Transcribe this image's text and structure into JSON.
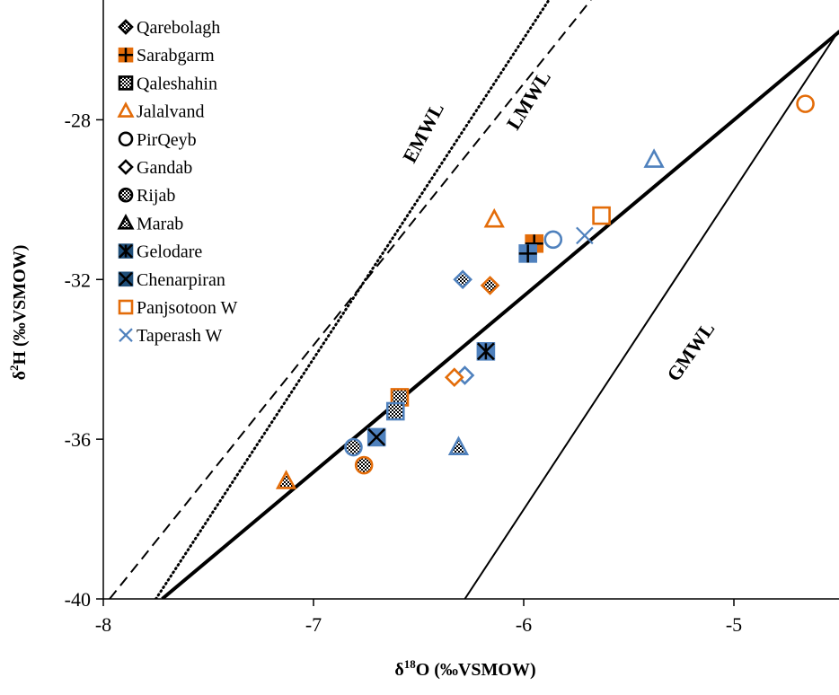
{
  "chart_data": {
    "type": "scatter",
    "xlabel": "δ¹⁸O (‰VSMOW)",
    "ylabel": "δ²H (‰VSMOW)",
    "xlim": [
      -8,
      -4.5
    ],
    "ylim": [
      -40,
      -25
    ],
    "x_ticks": [
      -8,
      -7,
      -6,
      -5
    ],
    "y_ticks": [
      -40,
      -36,
      -32,
      -28
    ],
    "x_tick_labels": [
      "-8",
      "-7",
      "-6",
      "-5"
    ],
    "y_tick_labels": [
      "-40",
      "-36",
      "-32",
      "-28"
    ],
    "grid": false,
    "legend_position": "top-left",
    "colors": {
      "orange": "#E36C09",
      "blue": "#4F81BD",
      "navy": "#1F4E79",
      "black": "#000000"
    },
    "legend": [
      {
        "label": "Qarebolagh",
        "marker": "diamond-plus",
        "color": "#000000"
      },
      {
        "label": "Sarabgarm",
        "marker": "square-cross",
        "color": "#E36C09"
      },
      {
        "label": "Qaleshahin",
        "marker": "square-checker",
        "color": "#000000"
      },
      {
        "label": "Jalalvand",
        "marker": "triangle",
        "color": "#E36C09"
      },
      {
        "label": "PirQeyb",
        "marker": "circle",
        "color": "#000000"
      },
      {
        "label": "Gandab",
        "marker": "diamond",
        "color": "#000000"
      },
      {
        "label": "Rijab",
        "marker": "circle-checker",
        "color": "#000000"
      },
      {
        "label": "Marab",
        "marker": "triangle-checker",
        "color": "#000000"
      },
      {
        "label": "Gelodare",
        "marker": "square-asterisk",
        "color": "#1F4E79"
      },
      {
        "label": "Chenarpiran",
        "marker": "square-x",
        "color": "#1F4E79"
      },
      {
        "label": "Panjsotoon W",
        "marker": "square",
        "color": "#E36C09"
      },
      {
        "label": "Taperash W",
        "marker": "x",
        "color": "#4F81BD"
      }
    ],
    "lines": [
      {
        "name": "EMWL",
        "style": "dotted",
        "x": [
          -7.75,
          -5.88
        ],
        "y": [
          -40,
          -25
        ]
      },
      {
        "name": "LMWL",
        "style": "dashed",
        "x": [
          -7.97,
          -5.68
        ],
        "y": [
          -40,
          -25
        ]
      },
      {
        "name": "GMWL",
        "style": "solid-thin",
        "x": [
          -6.28,
          -4.5
        ],
        "y": [
          -40,
          -25.76
        ]
      },
      {
        "name": "",
        "style": "solid-thick",
        "x": [
          -7.72,
          -4.5
        ],
        "y": [
          -40,
          -25.8
        ]
      }
    ],
    "line_labels": [
      {
        "text": "EMWL",
        "x": -6.45,
        "y": -28.4
      },
      {
        "text": "LMWL",
        "x": -5.95,
        "y": -27.6
      },
      {
        "text": "GMWL",
        "x": -5.18,
        "y": -33.9
      }
    ],
    "points": [
      {
        "x": -4.66,
        "y": -27.6,
        "marker": "circle",
        "color": "#E36C09",
        "label": "PirQeyb"
      },
      {
        "x": -5.38,
        "y": -29.0,
        "marker": "triangle",
        "color": "#4F81BD",
        "label": "Marab"
      },
      {
        "x": -5.63,
        "y": -30.4,
        "marker": "square",
        "color": "#E36C09",
        "label": "Panjsotoon W"
      },
      {
        "x": -5.71,
        "y": -30.9,
        "marker": "x",
        "color": "#4F81BD",
        "label": "Taperash W"
      },
      {
        "x": -5.86,
        "y": -31.0,
        "marker": "circle",
        "color": "#4F81BD",
        "label": "PirQeyb"
      },
      {
        "x": -5.95,
        "y": -31.1,
        "marker": "square-cross",
        "color": "#E36C09",
        "label": "Sarabgarm"
      },
      {
        "x": -5.98,
        "y": -31.35,
        "marker": "square-cross",
        "color": "#4F81BD",
        "label": "Sarabgarm"
      },
      {
        "x": -6.14,
        "y": -30.5,
        "marker": "triangle",
        "color": "#E36C09",
        "label": "Jalalvand"
      },
      {
        "x": -6.29,
        "y": -32.0,
        "marker": "diamond-plus",
        "color": "#4F81BD",
        "label": "Qarebolagh"
      },
      {
        "x": -6.16,
        "y": -32.15,
        "marker": "diamond-plus",
        "color": "#E36C09",
        "label": "Qarebolagh"
      },
      {
        "x": -6.18,
        "y": -33.8,
        "marker": "square-asterisk",
        "color": "#4F81BD",
        "label": "Gelodare"
      },
      {
        "x": -6.28,
        "y": -34.4,
        "marker": "diamond",
        "color": "#4F81BD",
        "label": "Gandab"
      },
      {
        "x": -6.33,
        "y": -34.45,
        "marker": "diamond",
        "color": "#E36C09",
        "label": "Gandab"
      },
      {
        "x": -6.31,
        "y": -36.2,
        "marker": "triangle-checker",
        "color": "#4F81BD",
        "label": "Marab"
      },
      {
        "x": -6.59,
        "y": -34.95,
        "marker": "square-checker",
        "color": "#E36C09",
        "label": "Qaleshahin"
      },
      {
        "x": -6.61,
        "y": -35.3,
        "marker": "square-checker",
        "color": "#4F81BD",
        "label": "Qaleshahin"
      },
      {
        "x": -6.7,
        "y": -35.95,
        "marker": "square-x",
        "color": "#4F81BD",
        "label": "Chenarpiran"
      },
      {
        "x": -6.81,
        "y": -36.2,
        "marker": "circle-checker",
        "color": "#4F81BD",
        "label": "Rijab"
      },
      {
        "x": -6.76,
        "y": -36.65,
        "marker": "circle-checker",
        "color": "#E36C09",
        "label": "Rijab"
      },
      {
        "x": -7.13,
        "y": -37.05,
        "marker": "triangle-checker",
        "color": "#E36C09",
        "label": "Marab"
      }
    ]
  }
}
